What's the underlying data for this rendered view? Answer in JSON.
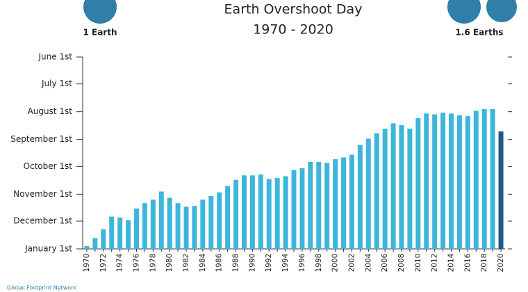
{
  "chart_data": {
    "type": "bar",
    "title": "Earth Overshoot Day",
    "subtitle": "1970 - 2020",
    "left_label": "1 Earth",
    "right_label": "1.6 Earths",
    "footer": "Global Footprint Network",
    "y_inverted": true,
    "ylim": [
      152,
      366
    ],
    "yticks": [
      {
        "value": 152,
        "label": "June 1st"
      },
      {
        "value": 182,
        "label": "July 1st"
      },
      {
        "value": 213,
        "label": "August 1st"
      },
      {
        "value": 244,
        "label": "September 1st"
      },
      {
        "value": 274,
        "label": "October 1st"
      },
      {
        "value": 305,
        "label": "November 1st"
      },
      {
        "value": 335,
        "label": "December 1st"
      },
      {
        "value": 366,
        "label": "January 1st"
      }
    ],
    "categories": [
      "1970",
      null,
      "1972",
      null,
      "1974",
      null,
      "1976",
      null,
      "1978",
      null,
      "1980",
      null,
      "1982",
      null,
      "1984",
      null,
      "1986",
      null,
      "1988",
      null,
      "1990",
      null,
      "1992",
      null,
      "1994",
      null,
      "1996",
      null,
      "1998",
      null,
      "2000",
      null,
      "2002",
      null,
      "2004",
      null,
      "2006",
      null,
      "2008",
      null,
      "2010",
      null,
      "2012",
      null,
      "2014",
      null,
      "2016",
      null,
      "2018",
      null,
      "2020"
    ],
    "values": [
      363,
      354,
      344,
      330,
      331,
      334,
      321,
      315,
      311,
      302,
      309,
      315,
      319,
      318,
      311,
      307,
      303,
      296,
      289,
      284,
      284,
      283,
      288,
      287,
      285,
      278,
      276,
      269,
      269,
      270,
      266,
      264,
      261,
      250,
      243,
      237,
      232,
      226,
      228,
      232,
      220,
      215,
      216,
      214,
      215,
      217,
      218,
      212,
      210,
      210,
      235
    ],
    "colors": [
      "#3db6da",
      "#3db6da",
      "#3db6da",
      "#3db6da",
      "#3db6da",
      "#3db6da",
      "#3db6da",
      "#3db6da",
      "#3db6da",
      "#3db6da",
      "#3db6da",
      "#3db6da",
      "#3db6da",
      "#3db6da",
      "#3db6da",
      "#3db6da",
      "#3db6da",
      "#3db6da",
      "#3db6da",
      "#3db6da",
      "#3db6da",
      "#3db6da",
      "#3db6da",
      "#3db6da",
      "#3db6da",
      "#3db6da",
      "#3db6da",
      "#3db6da",
      "#3db6da",
      "#3db6da",
      "#3db6da",
      "#3db6da",
      "#3db6da",
      "#3db6da",
      "#3db6da",
      "#3db6da",
      "#3db6da",
      "#3db6da",
      "#3db6da",
      "#3db6da",
      "#3db6da",
      "#3db6da",
      "#3db6da",
      "#3db6da",
      "#3db6da",
      "#3db6da",
      "#3db6da",
      "#3db6da",
      "#3db6da",
      "#3db6da",
      "#1d5a8e"
    ]
  }
}
